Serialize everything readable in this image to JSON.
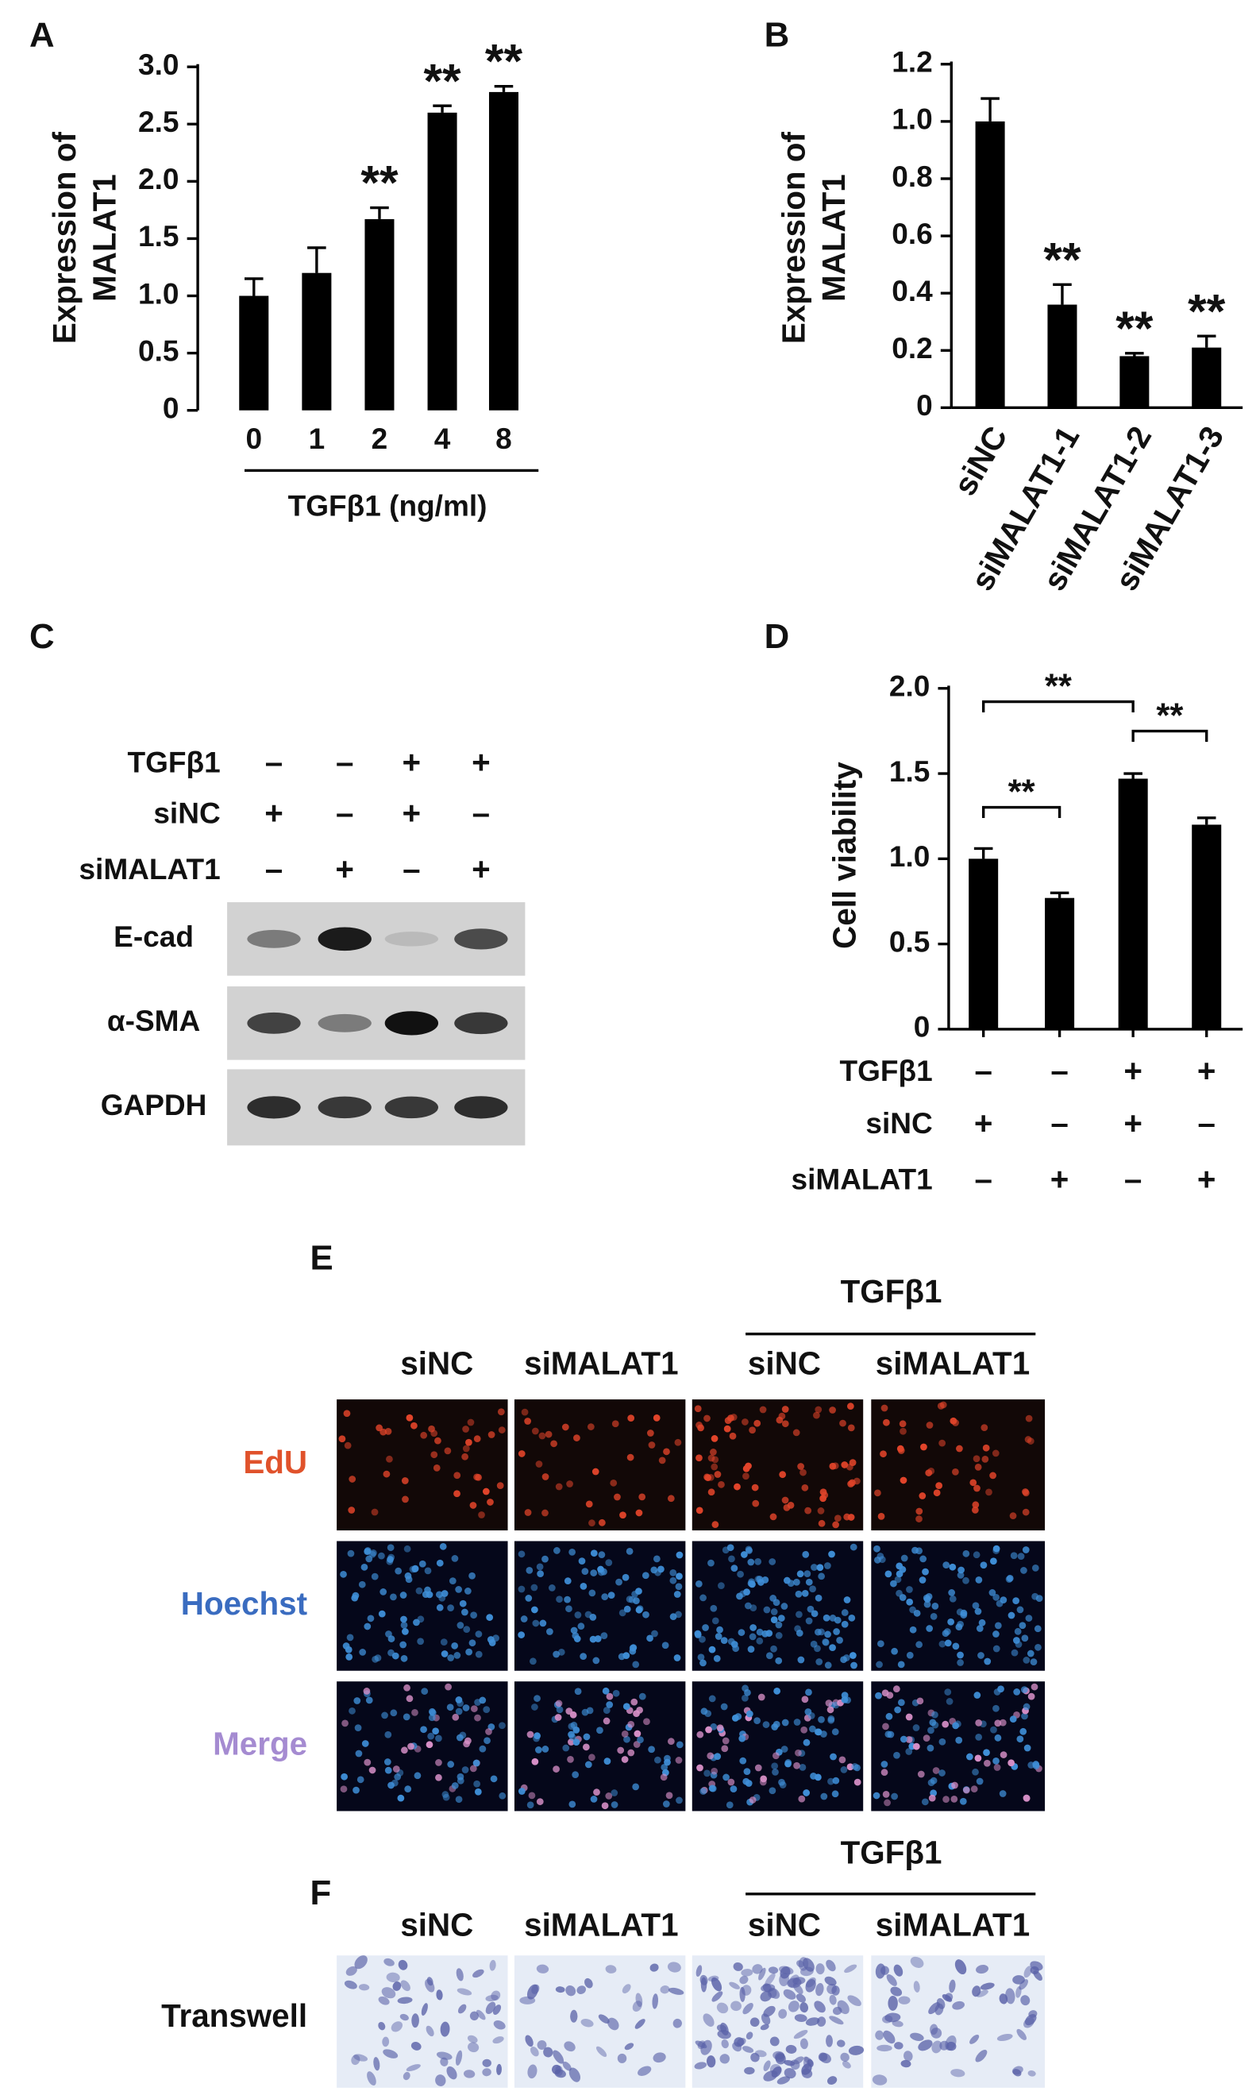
{
  "chart_data": [
    {
      "panel": "A",
      "type": "bar",
      "y_label": [
        "Expression of",
        "MALAT1"
      ],
      "x_label": "TGFβ1 (ng/ml)",
      "categories": [
        "0",
        "1",
        "2",
        "4",
        "8"
      ],
      "values": [
        1.0,
        1.2,
        1.67,
        2.6,
        2.78
      ],
      "errors": [
        0.15,
        0.22,
        0.1,
        0.06,
        0.05
      ],
      "annotations": [
        null,
        null,
        "**",
        "**",
        "**"
      ],
      "color": "#000000",
      "ylim": [
        0,
        3
      ],
      "yticks": [
        0,
        0.5,
        {
          "value": 1,
          "label": "1.0"
        },
        1.5,
        {
          "value": 2,
          "label": "2.0"
        },
        2.5,
        {
          "value": 3,
          "label": "3.0"
        }
      ]
    },
    {
      "panel": "B",
      "type": "bar",
      "y_label": [
        "Expression of",
        "MALAT1"
      ],
      "categories": [
        "siNC",
        "siMALAT1-1",
        "siMALAT1-2",
        "siMALAT1-3"
      ],
      "values": [
        1.0,
        0.36,
        0.18,
        0.21
      ],
      "errors": [
        0.08,
        0.07,
        0.01,
        0.04
      ],
      "annotations": [
        null,
        "**",
        "**",
        "**"
      ],
      "color": "#000000",
      "ylim": [
        0,
        1.2
      ],
      "yticks": [
        0,
        0.2,
        0.4,
        0.6,
        0.8,
        {
          "value": 1,
          "label": "1.0"
        },
        1.2
      ]
    },
    {
      "panel": "D",
      "type": "bar",
      "y_label": [
        "Cell viability"
      ],
      "values": [
        1.0,
        0.77,
        1.47,
        1.2
      ],
      "errors": [
        0.06,
        0.03,
        0.03,
        0.04
      ],
      "color": "#000000",
      "brackets": [
        "**",
        "**",
        "**"
      ],
      "conditions": [
        {
          "label": "TGFβ1",
          "signs": [
            "–",
            "–",
            "+",
            "+"
          ]
        },
        {
          "label": "siNC",
          "signs": [
            "+",
            "–",
            "+",
            "–"
          ]
        },
        {
          "label": "siMALAT1",
          "signs": [
            "–",
            "+",
            "–",
            "+"
          ]
        }
      ],
      "ylim": [
        0,
        2
      ],
      "yticks": [
        0,
        0.5,
        {
          "value": 1,
          "label": "1.0"
        },
        1.5,
        {
          "value": 2,
          "label": "2.0"
        }
      ]
    }
  ],
  "blot": {
    "panel": "C",
    "conditions": [
      {
        "label": "TGFβ1",
        "signs": [
          "–",
          "–",
          "+",
          "+"
        ]
      },
      {
        "label": "siNC",
        "signs": [
          "+",
          "–",
          "+",
          "–"
        ]
      },
      {
        "label": "siMALAT1",
        "signs": [
          "–",
          "+",
          "–",
          "+"
        ]
      }
    ],
    "rows": [
      "E-cad",
      "α-SMA",
      "GAPDH"
    ]
  },
  "edu": {
    "panel": "E",
    "group_label": "TGFβ1",
    "columns": [
      "siNC",
      "siMALAT1",
      "siNC",
      "siMALAT1"
    ],
    "rows": [
      "EdU",
      "Hoechst",
      "Merge"
    ],
    "row_colors": [
      "#e0522b",
      "#3a6cc0",
      "#a58bd1"
    ]
  },
  "transwell": {
    "panel": "F",
    "group_label": "TGFβ1",
    "columns": [
      "siNC",
      "siMALAT1",
      "siNC",
      "siMALAT1"
    ],
    "rows": [
      "Transwell"
    ]
  }
}
